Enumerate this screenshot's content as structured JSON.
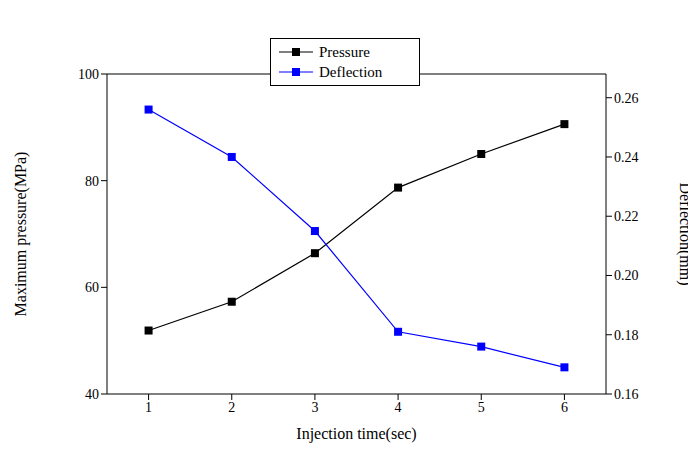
{
  "chart_data": {
    "type": "line",
    "x_label": "Injection time(sec)",
    "y_label": "Maximum pressure(MPa)",
    "y2_label": "Deflection(mm)",
    "x": [
      1,
      2,
      3,
      4,
      5,
      6
    ],
    "xlim": [
      0.5,
      6.5
    ],
    "xticks": [
      1,
      2,
      3,
      4,
      5,
      6
    ],
    "ylim": [
      40,
      100
    ],
    "yticks": [
      40,
      60,
      80,
      100
    ],
    "y2lim": [
      0.16,
      0.268
    ],
    "y2ticks": [
      0.16,
      0.18,
      {
        "value": 0.2,
        "label": "0.20"
      },
      0.22,
      0.24,
      0.26
    ],
    "grid": false,
    "legend": "top",
    "series": [
      {
        "name": "Pressure",
        "color": "#000000",
        "marker": "square",
        "values": [
          51.9,
          57.3,
          66.4,
          78.7,
          85.0,
          90.6
        ]
      },
      {
        "name": "Deflection",
        "color": "#0000ff",
        "marker": "square",
        "axis": "y2",
        "values": [
          0.256,
          0.24,
          0.215,
          0.181,
          0.176,
          0.169
        ]
      }
    ]
  }
}
